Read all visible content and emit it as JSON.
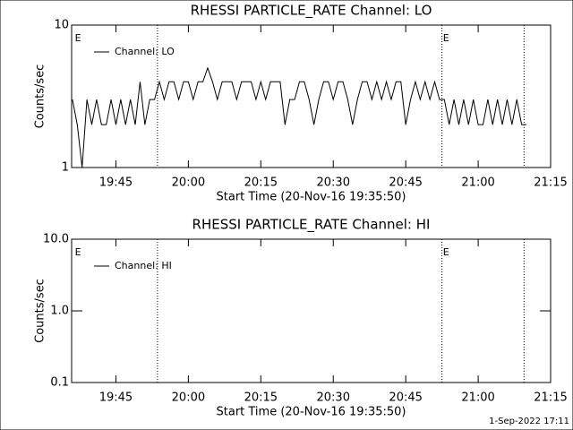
{
  "chart_data": [
    {
      "type": "line",
      "title": "RHESSI PARTICLE_RATE Channel: LO",
      "xlabel": "Start Time (20-Nov-16 19:35:50)",
      "ylabel": "Counts/sec",
      "x": [
        1176,
        1177,
        1178,
        1179,
        1180,
        1181,
        1182,
        1183,
        1184,
        1185,
        1186,
        1187,
        1188,
        1189,
        1190,
        1191,
        1192,
        1193,
        1194,
        1195,
        1196,
        1197,
        1198,
        1199,
        1200,
        1201,
        1202,
        1203,
        1204,
        1205,
        1206,
        1207,
        1208,
        1209,
        1210,
        1211,
        1212,
        1213,
        1214,
        1215,
        1216,
        1217,
        1218,
        1219,
        1220,
        1221,
        1222,
        1223,
        1224,
        1225,
        1226,
        1227,
        1228,
        1229,
        1230,
        1231,
        1232,
        1233,
        1234,
        1235,
        1236,
        1237,
        1238,
        1239,
        1240,
        1241,
        1242,
        1243,
        1244,
        1245,
        1246,
        1247,
        1248,
        1249,
        1250,
        1251,
        1252,
        1253,
        1254,
        1255,
        1256,
        1257,
        1258,
        1259,
        1260,
        1261,
        1262,
        1263,
        1264,
        1265,
        1266,
        1267,
        1268,
        1269,
        1270
      ],
      "series": [
        {
          "name": "Channel: LO",
          "color": "#000000",
          "values": [
            3,
            2,
            1,
            3,
            2,
            3,
            2,
            2,
            3,
            2,
            3,
            2,
            3,
            2,
            4,
            2,
            3,
            3,
            4,
            3,
            4,
            4,
            3,
            4,
            4,
            3,
            4,
            4,
            5,
            4,
            3,
            4,
            4,
            4,
            3,
            4,
            4,
            4,
            3,
            4,
            3,
            4,
            4,
            4,
            2,
            3,
            3,
            4,
            4,
            3,
            2,
            3,
            4,
            4,
            3,
            4,
            4,
            3,
            2,
            3,
            4,
            4,
            3,
            4,
            3,
            4,
            3,
            4,
            4,
            2,
            3,
            4,
            3,
            4,
            3,
            4,
            3,
            3,
            2,
            3,
            2,
            3,
            2,
            3,
            2,
            2,
            3,
            2,
            3,
            2,
            3,
            2,
            3,
            2,
            2
          ]
        }
      ],
      "xlim": [
        1175.83,
        1275
      ],
      "xticks": [
        {
          "value": 1185,
          "label": "19:45"
        },
        {
          "value": 1200,
          "label": "20:00"
        },
        {
          "value": 1215,
          "label": "20:15"
        },
        {
          "value": 1230,
          "label": "20:30"
        },
        {
          "value": 1245,
          "label": "20:45"
        },
        {
          "value": 1260,
          "label": "21:00"
        },
        {
          "value": 1275,
          "label": "21:15"
        }
      ],
      "ylim": [
        1,
        10
      ],
      "yticks": [
        1,
        10
      ],
      "log_y": true,
      "vlines": [
        1193.6,
        1252.5,
        1269.5
      ],
      "annotations": [
        {
          "text": "E",
          "x": 1176.5
        },
        {
          "text": "E",
          "x": 1252.7
        }
      ]
    },
    {
      "type": "line",
      "title": "RHESSI PARTICLE_RATE Channel: HI",
      "xlabel": "Start Time (20-Nov-16 19:35:50)",
      "ylabel": "Counts/sec",
      "x": [],
      "series": [
        {
          "name": "Channel: HI",
          "color": "#000000",
          "values": []
        }
      ],
      "xlim": [
        1175.83,
        1275
      ],
      "xticks": [
        {
          "value": 1185,
          "label": "19:45"
        },
        {
          "value": 1200,
          "label": "20:00"
        },
        {
          "value": 1215,
          "label": "20:15"
        },
        {
          "value": 1230,
          "label": "20:30"
        },
        {
          "value": 1245,
          "label": "20:45"
        },
        {
          "value": 1260,
          "label": "21:00"
        },
        {
          "value": 1275,
          "label": "21:15"
        }
      ],
      "ylim": [
        0.1,
        10
      ],
      "yticks": [
        {
          "value": 0.1,
          "label": "0.1"
        },
        {
          "value": 1,
          "label": "1.0"
        },
        {
          "value": 10,
          "label": "10.0"
        }
      ],
      "log_y": true,
      "vlines": [
        1193.6,
        1252.5,
        1269.5
      ],
      "annotations": [
        {
          "text": "E",
          "x": 1176.5
        },
        {
          "text": "E",
          "x": 1252.7
        }
      ]
    }
  ],
  "footer": "1-Sep-2022 17:11"
}
